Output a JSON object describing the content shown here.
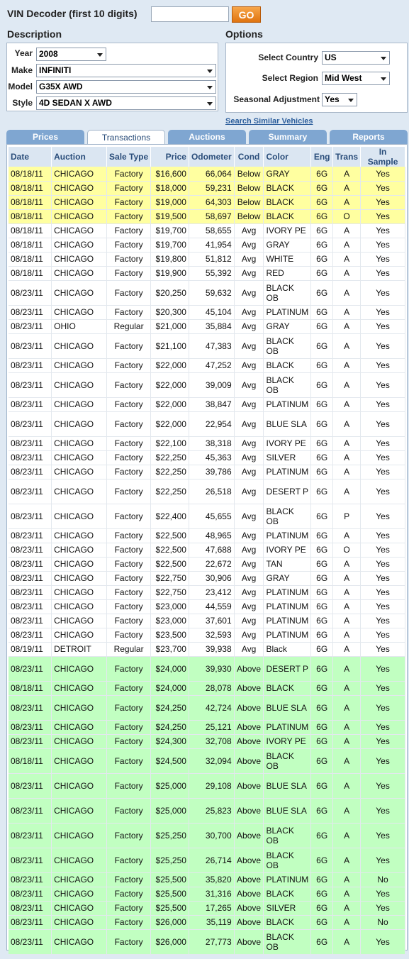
{
  "vin": {
    "label": "VIN Decoder (first 10 digits)",
    "value": "",
    "go_label": "GO"
  },
  "description": {
    "title": "Description",
    "fields": [
      {
        "label": "Year",
        "value": "2008"
      },
      {
        "label": "Make",
        "value": "INFINITI"
      },
      {
        "label": "Model",
        "value": "G35X AWD"
      },
      {
        "label": "Style",
        "value": "4D SEDAN X AWD"
      }
    ]
  },
  "options": {
    "title": "Options",
    "fields": [
      {
        "label": "Select Country",
        "value": "US"
      },
      {
        "label": "Select Region",
        "value": "Mid West"
      },
      {
        "label": "Seasonal Adjustment",
        "value": "Yes"
      }
    ]
  },
  "search_link": "Search Similar Vehicles",
  "tabs": [
    "Prices",
    "Transactions",
    "Auctions",
    "Summary",
    "Reports"
  ],
  "active_tab": "Transactions",
  "colors": {
    "below": "#ffffa0",
    "avg": "#ffffff",
    "above": "#c1ffc1",
    "tab": "#7fa6d1",
    "go": "#f08a20"
  },
  "table": {
    "columns": [
      "Date",
      "Auction",
      "Sale Type",
      "Price",
      "Odometer",
      "Cond",
      "Color",
      "Eng",
      "Trans",
      "In Sample"
    ],
    "rows": [
      [
        "08/18/11",
        "CHICAGO",
        "Factory",
        "$16,600",
        "66,064",
        "Below",
        "GRAY",
        "6G",
        "A",
        "Yes"
      ],
      [
        "08/18/11",
        "CHICAGO",
        "Factory",
        "$18,000",
        "59,231",
        "Below",
        "BLACK",
        "6G",
        "A",
        "Yes"
      ],
      [
        "08/18/11",
        "CHICAGO",
        "Factory",
        "$19,000",
        "64,303",
        "Below",
        "BLACK",
        "6G",
        "A",
        "Yes"
      ],
      [
        "08/18/11",
        "CHICAGO",
        "Factory",
        "$19,500",
        "58,697",
        "Below",
        "BLACK",
        "6G",
        "O",
        "Yes"
      ],
      [
        "08/18/11",
        "CHICAGO",
        "Factory",
        "$19,700",
        "58,655",
        "Avg",
        "IVORY PE",
        "6G",
        "A",
        "Yes"
      ],
      [
        "08/18/11",
        "CHICAGO",
        "Factory",
        "$19,700",
        "41,954",
        "Avg",
        "GRAY",
        "6G",
        "A",
        "Yes"
      ],
      [
        "08/18/11",
        "CHICAGO",
        "Factory",
        "$19,800",
        "51,812",
        "Avg",
        "WHITE",
        "6G",
        "A",
        "Yes"
      ],
      [
        "08/18/11",
        "CHICAGO",
        "Factory",
        "$19,900",
        "55,392",
        "Avg",
        "RED",
        "6G",
        "A",
        "Yes"
      ],
      [
        "08/23/11",
        "CHICAGO",
        "Factory",
        "$20,250",
        "59,632",
        "Avg",
        "BLACK OB",
        "6G",
        "A",
        "Yes"
      ],
      [
        "08/23/11",
        "CHICAGO",
        "Factory",
        "$20,300",
        "45,104",
        "Avg",
        "PLATINUM",
        "6G",
        "A",
        "Yes"
      ],
      [
        "08/23/11",
        "OHIO",
        "Regular",
        "$21,000",
        "35,884",
        "Avg",
        "GRAY",
        "6G",
        "A",
        "Yes"
      ],
      [
        "08/23/11",
        "CHICAGO",
        "Factory",
        "$21,100",
        "47,383",
        "Avg",
        "BLACK OB",
        "6G",
        "A",
        "Yes"
      ],
      [
        "08/23/11",
        "CHICAGO",
        "Factory",
        "$22,000",
        "47,252",
        "Avg",
        "BLACK",
        "6G",
        "A",
        "Yes"
      ],
      [
        "08/23/11",
        "CHICAGO",
        "Factory",
        "$22,000",
        "39,009",
        "Avg",
        "BLACK OB",
        "6G",
        "A",
        "Yes"
      ],
      [
        "08/23/11",
        "CHICAGO",
        "Factory",
        "$22,000",
        "38,847",
        "Avg",
        "PLATINUM",
        "6G",
        "A",
        "Yes"
      ],
      [
        "08/23/11",
        "CHICAGO",
        "Factory",
        "$22,000",
        "22,954",
        "Avg",
        "BLUE SLA",
        "6G",
        "A",
        "Yes"
      ],
      [
        "08/23/11",
        "CHICAGO",
        "Factory",
        "$22,100",
        "38,318",
        "Avg",
        "IVORY PE",
        "6G",
        "A",
        "Yes"
      ],
      [
        "08/23/11",
        "CHICAGO",
        "Factory",
        "$22,250",
        "45,363",
        "Avg",
        "SILVER",
        "6G",
        "A",
        "Yes"
      ],
      [
        "08/23/11",
        "CHICAGO",
        "Factory",
        "$22,250",
        "39,786",
        "Avg",
        "PLATINUM",
        "6G",
        "A",
        "Yes"
      ],
      [
        "08/23/11",
        "CHICAGO",
        "Factory",
        "$22,250",
        "26,518",
        "Avg",
        "DESERT P",
        "6G",
        "A",
        "Yes"
      ],
      [
        "08/23/11",
        "CHICAGO",
        "Factory",
        "$22,400",
        "45,655",
        "Avg",
        "BLACK OB",
        "6G",
        "P",
        "Yes"
      ],
      [
        "08/23/11",
        "CHICAGO",
        "Factory",
        "$22,500",
        "48,965",
        "Avg",
        "PLATINUM",
        "6G",
        "A",
        "Yes"
      ],
      [
        "08/23/11",
        "CHICAGO",
        "Factory",
        "$22,500",
        "47,688",
        "Avg",
        "IVORY PE",
        "6G",
        "O",
        "Yes"
      ],
      [
        "08/23/11",
        "CHICAGO",
        "Factory",
        "$22,500",
        "22,672",
        "Avg",
        "TAN",
        "6G",
        "A",
        "Yes"
      ],
      [
        "08/23/11",
        "CHICAGO",
        "Factory",
        "$22,750",
        "30,906",
        "Avg",
        "GRAY",
        "6G",
        "A",
        "Yes"
      ],
      [
        "08/23/11",
        "CHICAGO",
        "Factory",
        "$22,750",
        "23,412",
        "Avg",
        "PLATINUM",
        "6G",
        "A",
        "Yes"
      ],
      [
        "08/23/11",
        "CHICAGO",
        "Factory",
        "$23,000",
        "44,559",
        "Avg",
        "PLATINUM",
        "6G",
        "A",
        "Yes"
      ],
      [
        "08/23/11",
        "CHICAGO",
        "Factory",
        "$23,000",
        "37,601",
        "Avg",
        "PLATINUM",
        "6G",
        "A",
        "Yes"
      ],
      [
        "08/23/11",
        "CHICAGO",
        "Factory",
        "$23,500",
        "32,593",
        "Avg",
        "PLATINUM",
        "6G",
        "A",
        "Yes"
      ],
      [
        "08/19/11",
        "DETROIT",
        "Regular",
        "$23,700",
        "39,938",
        "Avg",
        "Black",
        "6G",
        "A",
        "Yes"
      ],
      [
        "08/23/11",
        "CHICAGO",
        "Factory",
        "$24,000",
        "39,930",
        "Above",
        "DESERT P",
        "6G",
        "A",
        "Yes"
      ],
      [
        "08/18/11",
        "CHICAGO",
        "Factory",
        "$24,000",
        "28,078",
        "Above",
        "BLACK",
        "6G",
        "A",
        "Yes"
      ],
      [
        "08/23/11",
        "CHICAGO",
        "Factory",
        "$24,250",
        "42,724",
        "Above",
        "BLUE SLA",
        "6G",
        "A",
        "Yes"
      ],
      [
        "08/23/11",
        "CHICAGO",
        "Factory",
        "$24,250",
        "25,121",
        "Above",
        "PLATINUM",
        "6G",
        "A",
        "Yes"
      ],
      [
        "08/23/11",
        "CHICAGO",
        "Factory",
        "$24,300",
        "32,708",
        "Above",
        "IVORY PE",
        "6G",
        "A",
        "Yes"
      ],
      [
        "08/18/11",
        "CHICAGO",
        "Factory",
        "$24,500",
        "32,094",
        "Above",
        "BLACK OB",
        "6G",
        "A",
        "Yes"
      ],
      [
        "08/23/11",
        "CHICAGO",
        "Factory",
        "$25,000",
        "29,108",
        "Above",
        "BLUE SLA",
        "6G",
        "A",
        "Yes"
      ],
      [
        "08/23/11",
        "CHICAGO",
        "Factory",
        "$25,000",
        "25,823",
        "Above",
        "BLUE SLA",
        "6G",
        "A",
        "Yes"
      ],
      [
        "08/23/11",
        "CHICAGO",
        "Factory",
        "$25,250",
        "30,700",
        "Above",
        "BLACK OB",
        "6G",
        "A",
        "Yes"
      ],
      [
        "08/23/11",
        "CHICAGO",
        "Factory",
        "$25,250",
        "26,714",
        "Above",
        "BLACK OB",
        "6G",
        "A",
        "Yes"
      ],
      [
        "08/23/11",
        "CHICAGO",
        "Factory",
        "$25,500",
        "35,820",
        "Above",
        "PLATINUM",
        "6G",
        "A",
        "No"
      ],
      [
        "08/23/11",
        "CHICAGO",
        "Factory",
        "$25,500",
        "31,316",
        "Above",
        "BLACK",
        "6G",
        "A",
        "Yes"
      ],
      [
        "08/23/11",
        "CHICAGO",
        "Factory",
        "$25,500",
        "17,265",
        "Above",
        "SILVER",
        "6G",
        "A",
        "Yes"
      ],
      [
        "08/23/11",
        "CHICAGO",
        "Factory",
        "$26,000",
        "35,119",
        "Above",
        "BLACK",
        "6G",
        "A",
        "No"
      ],
      [
        "08/23/11",
        "CHICAGO",
        "Factory",
        "$26,000",
        "27,773",
        "Above",
        "BLACK OB",
        "6G",
        "A",
        "Yes"
      ]
    ]
  }
}
